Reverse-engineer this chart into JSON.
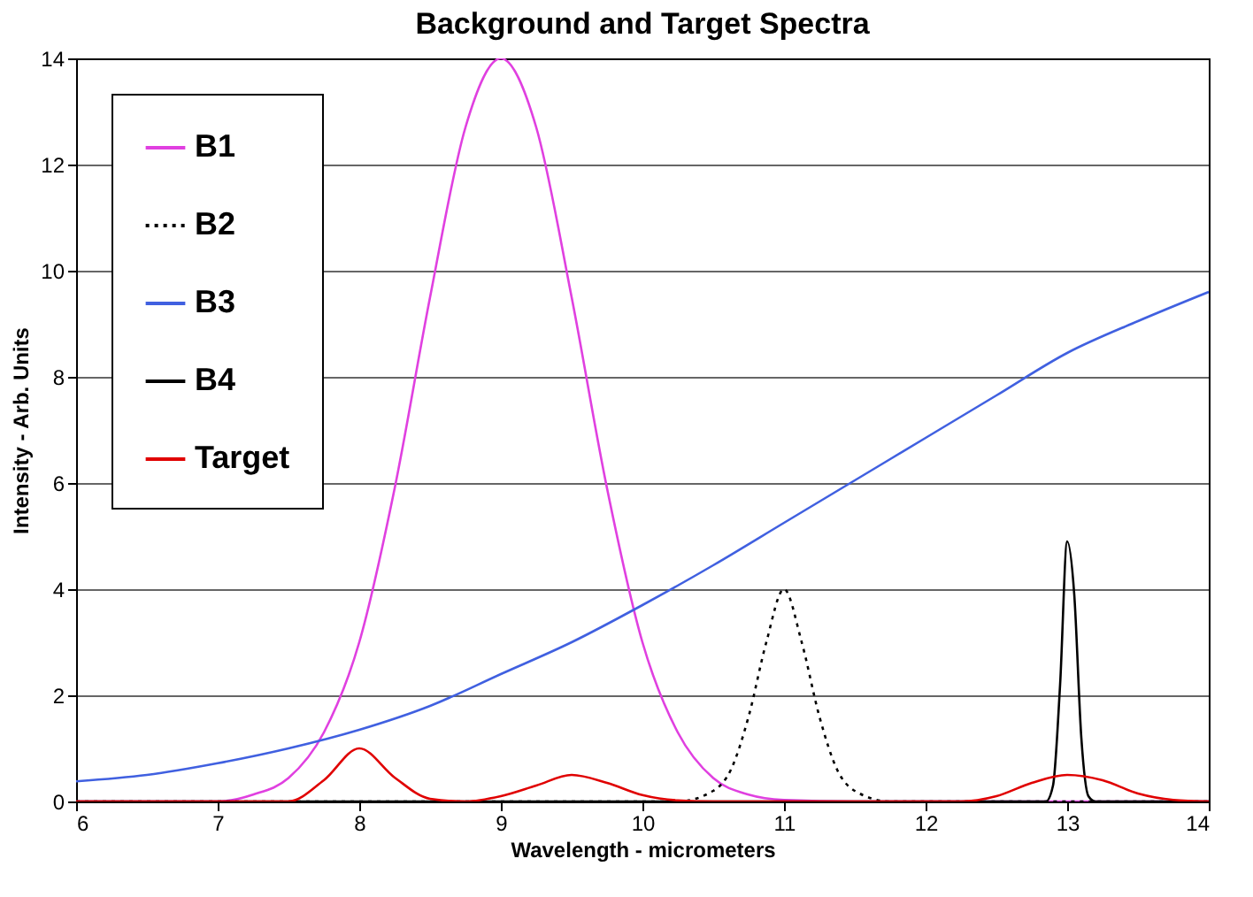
{
  "chart_data": {
    "type": "line",
    "title": "Background and Target Spectra",
    "xlabel": "Wavelength - micrometers",
    "ylabel": "Intensity - Arb. Units",
    "xlim": [
      6,
      14
    ],
    "ylim": [
      0,
      14
    ],
    "xticks": [
      6,
      7,
      8,
      9,
      10,
      11,
      12,
      13,
      14
    ],
    "yticks": [
      0,
      2,
      4,
      6,
      8,
      10,
      12,
      14
    ],
    "grid": "y",
    "legend": "top left",
    "marker": "none",
    "series": [
      {
        "name": "B1",
        "color": "#e040e0",
        "line_style": "solid",
        "x": [
          6,
          7,
          7.25,
          7.5,
          7.75,
          8,
          8.25,
          8.5,
          8.75,
          9,
          9.25,
          9.5,
          9.75,
          10,
          10.25,
          10.5,
          10.75,
          11,
          11.5,
          14
        ],
        "values": [
          0,
          0,
          0.13,
          0.44,
          1.3,
          3.0,
          5.9,
          9.5,
          12.7,
          14,
          12.7,
          9.5,
          5.9,
          3.0,
          1.3,
          0.44,
          0.13,
          0.03,
          0,
          0
        ]
      },
      {
        "name": "B2",
        "color": "#000000",
        "line_style": "dotted",
        "x": [
          6,
          10.25,
          10.5,
          10.625,
          10.75,
          10.875,
          11,
          11.125,
          11.25,
          11.375,
          11.5,
          11.75,
          14
        ],
        "values": [
          0,
          0,
          0.2,
          0.6,
          1.6,
          3.0,
          4.0,
          3.0,
          1.6,
          0.6,
          0.2,
          0,
          0
        ]
      },
      {
        "name": "B3",
        "color": "#4060e0",
        "line_style": "solid",
        "x": [
          6,
          6.5,
          7,
          7.5,
          8,
          8.5,
          9,
          9.5,
          10,
          10.5,
          11,
          11.5,
          12,
          12.5,
          13,
          13.5,
          14
        ],
        "values": [
          0.38,
          0.5,
          0.72,
          1.0,
          1.35,
          1.8,
          2.4,
          3.0,
          3.7,
          4.45,
          5.25,
          6.05,
          6.85,
          7.65,
          8.45,
          9.05,
          9.6
        ]
      },
      {
        "name": "B4",
        "color": "#000000",
        "line_style": "solid",
        "x": [
          6,
          12.85,
          12.9,
          12.95,
          13,
          13.05,
          13.1,
          13.15,
          13.2,
          14
        ],
        "values": [
          0,
          0,
          0.3,
          2.2,
          4.9,
          3.9,
          1.2,
          0.1,
          0,
          0
        ]
      },
      {
        "name": "Target",
        "color": "#e00000",
        "line_style": "solid",
        "x": [
          6,
          7.5,
          7.75,
          8,
          8.25,
          8.5,
          8.75,
          9,
          9.25,
          9.5,
          9.75,
          10,
          10.25,
          10.5,
          12.25,
          12.5,
          12.75,
          13,
          13.25,
          13.5,
          13.75,
          14
        ],
        "values": [
          0,
          0,
          0.4,
          1.0,
          0.45,
          0.05,
          0,
          0.1,
          0.3,
          0.5,
          0.35,
          0.12,
          0.02,
          0,
          0,
          0.1,
          0.35,
          0.5,
          0.4,
          0.15,
          0.03,
          0
        ]
      }
    ]
  }
}
